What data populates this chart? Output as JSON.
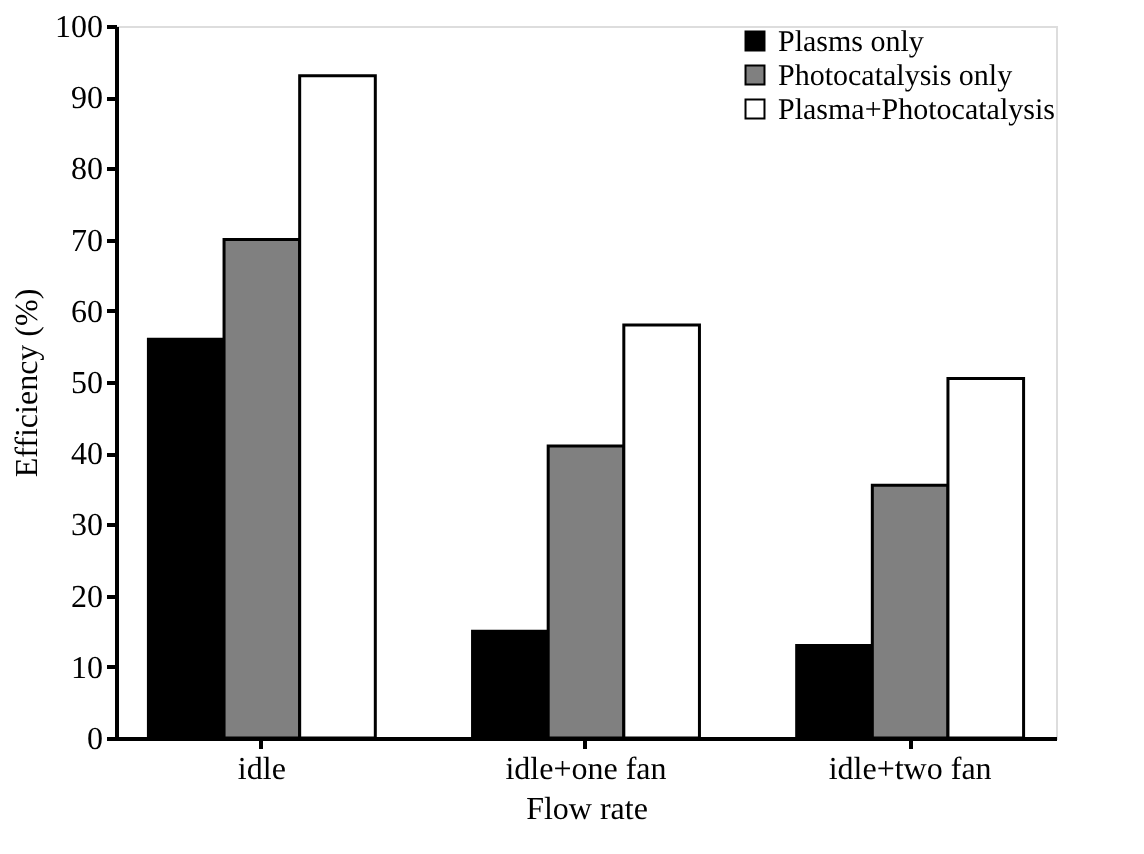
{
  "chart_data": {
    "type": "bar",
    "xlabel": "Flow rate",
    "ylabel": "Efficiency (%)",
    "categories": [
      "idle",
      "idle+one fan",
      "idle+two fan"
    ],
    "series": [
      {
        "name": "Plasms only",
        "color": "#000000",
        "values": [
          56,
          15,
          13
        ]
      },
      {
        "name": "Photocatalysis only",
        "color": "#808080",
        "values": [
          70,
          41,
          35.5
        ]
      },
      {
        "name": "Plasma+Photocatalysis",
        "color": "#ffffff",
        "values": [
          93,
          58,
          50.5
        ]
      }
    ],
    "ylim": [
      0,
      100
    ],
    "yticks": [
      0,
      10,
      20,
      30,
      40,
      50,
      60,
      70,
      80,
      90,
      100
    ],
    "grid": false,
    "legend": "top right"
  }
}
